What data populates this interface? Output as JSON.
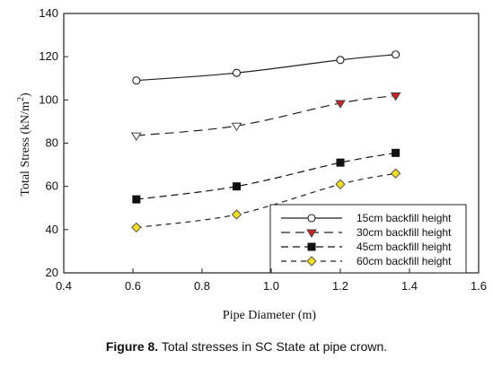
{
  "chart_data": {
    "type": "line",
    "xlabel": "Pipe Diameter (m)",
    "ylabel": "Total Stress (kN/m",
    "ylabel_sup": "2",
    "ylabel_close": ")",
    "xlim": [
      0.4,
      1.6
    ],
    "ylim": [
      20,
      140
    ],
    "xticks": [
      "0.4",
      "0.6",
      "0.8",
      "1.0",
      "1.2",
      "1.4",
      "1.6"
    ],
    "yticks": [
      "20",
      "40",
      "60",
      "80",
      "100",
      "120",
      "140"
    ],
    "grid": false,
    "legend_placement": "bottom-right",
    "series": [
      {
        "name": "15cm backfill height",
        "marker": "open-circle",
        "line": "solid",
        "color": "#222222",
        "marker_fill": "#ffffff",
        "points": [
          [
            0.61,
            109
          ],
          [
            0.9,
            112.5
          ],
          [
            1.2,
            118.5
          ],
          [
            1.36,
            121
          ]
        ]
      },
      {
        "name": "30cm backfill height",
        "marker": "triangle-down",
        "line": "long-dash",
        "color": "#222222",
        "marker_fill_points": [
          "#ffffff",
          "#ffffff",
          "#cc2222",
          "#cc2222"
        ],
        "points": [
          [
            0.61,
            83.5
          ],
          [
            0.9,
            88
          ],
          [
            1.2,
            98.5
          ],
          [
            1.36,
            102
          ]
        ]
      },
      {
        "name": "45cm backfill height",
        "marker": "filled-square",
        "line": "dash",
        "color": "#111111",
        "marker_fill": "#111111",
        "points": [
          [
            0.61,
            54
          ],
          [
            0.9,
            60
          ],
          [
            1.2,
            71
          ],
          [
            1.36,
            75.5
          ]
        ]
      },
      {
        "name": "60cm backfill height",
        "marker": "diamond",
        "line": "short-dash",
        "color": "#222222",
        "marker_fill": "#f2e01e",
        "points": [
          [
            0.61,
            41
          ],
          [
            0.9,
            47
          ],
          [
            1.2,
            61
          ],
          [
            1.36,
            66
          ]
        ]
      }
    ]
  },
  "caption": {
    "label": "Figure 8.",
    "text": " Total stresses in SC State at pipe crown."
  }
}
